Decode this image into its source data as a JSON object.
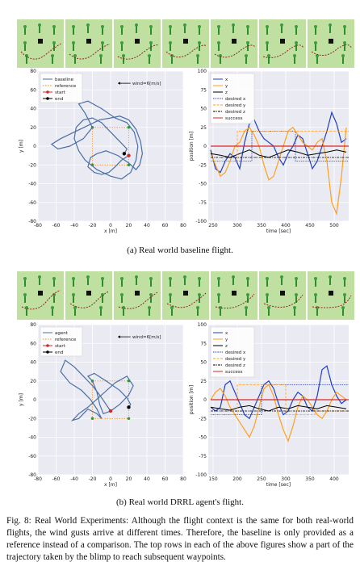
{
  "captions": {
    "a": "(a) Real world baseline flight.",
    "b": "(b) Real world DRRL agent's flight."
  },
  "figure_caption": "Fig. 8: Real World Experiments: Although the flight context is the same for both real-world flights, the wind gusts arrive at different times. Therefore, the baseline is only provided as a reference instead of a comparison. The top rows in each of the above figures show a part of the trajectory taken by the blimp to reach subsequent waypoints.",
  "colors": {
    "x": "#1f3fbf",
    "y": "#ff9f1c",
    "z": "#000000",
    "success": "#d62728",
    "traj": "#4a6fa5",
    "reference": "#f28c28",
    "start": "#d62728",
    "end": "#000000",
    "tile": "#bfe0a0",
    "panel_bg": "#eaeaf2"
  },
  "chart_data": [
    {
      "type": "line",
      "id": "a-left",
      "xlabel": "x [m]",
      "ylabel": "y [m]",
      "xlim": [
        -80,
        80
      ],
      "ylim": [
        -80,
        80
      ],
      "xticks": [
        -80,
        -60,
        -40,
        -20,
        0,
        20,
        40,
        60,
        80
      ],
      "yticks": [
        -80,
        -60,
        -40,
        -20,
        0,
        20,
        40,
        60,
        80
      ],
      "annotation": "wind=6[m/s]",
      "legend": [
        "baseline",
        "reference",
        "start",
        "end"
      ],
      "reference": {
        "x": [
          -20,
          20,
          20,
          -20,
          -20
        ],
        "y": [
          -20,
          -20,
          20,
          20,
          -20
        ]
      },
      "start": [
        20,
        -10
      ],
      "end": [
        15,
        -8
      ],
      "series": [
        {
          "name": "baseline",
          "x": [
            20,
            12,
            5,
            -2,
            -10,
            -18,
            -25,
            -22,
            -15,
            -5,
            8,
            20,
            28,
            32,
            35,
            33,
            28,
            20,
            10,
            0,
            -12,
            -25,
            -40,
            -55,
            -65,
            -58,
            -45,
            -30,
            -20,
            -28,
            -35,
            -25,
            -10,
            5,
            18,
            26,
            30,
            28,
            22,
            12,
            0,
            -15,
            -28,
            -35,
            -40,
            -38,
            -30,
            -20,
            -10,
            0,
            10,
            18,
            15
          ],
          "y": [
            -10,
            -15,
            -22,
            -28,
            -30,
            -28,
            -22,
            -12,
            -8,
            -5,
            -10,
            -18,
            -25,
            -20,
            -8,
            5,
            18,
            28,
            32,
            30,
            28,
            22,
            15,
            8,
            2,
            -3,
            0,
            8,
            20,
            35,
            45,
            48,
            40,
            30,
            25,
            15,
            0,
            -15,
            -28,
            -35,
            -32,
            -25,
            -15,
            -5,
            8,
            20,
            28,
            30,
            25,
            15,
            5,
            -3,
            -8
          ]
        }
      ]
    },
    {
      "type": "line",
      "id": "a-right",
      "xlabel": "time [sec]",
      "ylabel": "position [m]",
      "xlim": [
        240,
        530
      ],
      "ylim": [
        -100,
        100
      ],
      "xticks": [
        250,
        300,
        350,
        400,
        450,
        500
      ],
      "yticks": [
        -100,
        -75,
        -50,
        -25,
        0,
        25,
        50,
        75,
        100
      ],
      "legend": [
        "x",
        "y",
        "z",
        "desired x",
        "desired y",
        "desired z",
        "success"
      ],
      "series": [
        {
          "name": "x",
          "x": [
            245,
            255,
            265,
            275,
            285,
            295,
            305,
            315,
            325,
            335,
            345,
            355,
            365,
            375,
            385,
            395,
            405,
            415,
            425,
            435,
            445,
            455,
            465,
            475,
            485,
            495,
            505,
            515,
            525
          ],
          "y": [
            -5,
            -30,
            -35,
            -20,
            -10,
            -15,
            -30,
            5,
            30,
            35,
            20,
            10,
            5,
            0,
            -15,
            -25,
            -10,
            0,
            15,
            10,
            -10,
            -30,
            -20,
            0,
            20,
            45,
            30,
            5,
            10
          ]
        },
        {
          "name": "y",
          "x": [
            245,
            255,
            265,
            275,
            285,
            295,
            305,
            315,
            325,
            335,
            345,
            355,
            365,
            375,
            385,
            395,
            405,
            415,
            425,
            435,
            445,
            455,
            465,
            475,
            485,
            495,
            505,
            515,
            525
          ],
          "y": [
            -10,
            -25,
            -40,
            -35,
            -20,
            0,
            5,
            20,
            25,
            15,
            0,
            -25,
            -45,
            -40,
            -20,
            0,
            20,
            25,
            15,
            5,
            0,
            -5,
            5,
            10,
            -20,
            -75,
            -90,
            -40,
            25
          ]
        },
        {
          "name": "z",
          "x": [
            245,
            265,
            285,
            305,
            325,
            345,
            365,
            385,
            405,
            425,
            445,
            465,
            485,
            505,
            525
          ],
          "y": [
            -10,
            -12,
            -15,
            -10,
            -5,
            -12,
            -15,
            -10,
            -5,
            -8,
            -12,
            -10,
            -8,
            -5,
            -8
          ]
        },
        {
          "name": "desired x",
          "x": [
            245,
            330,
            330,
            420,
            420,
            530
          ],
          "y": [
            -20,
            -20,
            20,
            20,
            -20,
            -20
          ]
        },
        {
          "name": "desired y",
          "x": [
            245,
            300,
            300,
            380,
            380,
            480,
            480,
            530
          ],
          "y": [
            -20,
            -20,
            20,
            20,
            20,
            20,
            20,
            20
          ]
        },
        {
          "name": "desired z",
          "x": [
            245,
            530
          ],
          "y": [
            -15,
            -15
          ]
        },
        {
          "name": "success",
          "x": [
            245,
            530
          ],
          "y": [
            0,
            0
          ]
        }
      ]
    },
    {
      "type": "line",
      "id": "b-left",
      "xlabel": "x [m]",
      "ylabel": "y [m]",
      "xlim": [
        -80,
        80
      ],
      "ylim": [
        -80,
        80
      ],
      "xticks": [
        -80,
        -60,
        -40,
        -20,
        0,
        20,
        40,
        60,
        80
      ],
      "yticks": [
        -80,
        -60,
        -40,
        -20,
        0,
        20,
        40,
        60,
        80
      ],
      "annotation": "wind=6[m/s]",
      "legend": [
        "agent",
        "reference",
        "start",
        "end"
      ],
      "reference": {
        "x": [
          -20,
          20,
          20,
          -20,
          -20
        ],
        "y": [
          -20,
          -20,
          20,
          20,
          -20
        ]
      },
      "start": [
        0,
        -12
      ],
      "end": [
        20,
        -8
      ],
      "series": [
        {
          "name": "agent",
          "x": [
            0,
            -5,
            -12,
            -20,
            -30,
            -40,
            -50,
            -55,
            -45,
            -32,
            -22,
            -15,
            -10,
            -15,
            -25,
            -35,
            -42,
            -35,
            -25,
            -10,
            5,
            18,
            25,
            20,
            10,
            0,
            -8,
            -12,
            -15,
            -20,
            -25,
            -18,
            -5,
            10,
            18,
            22,
            20
          ],
          "y": [
            -12,
            -5,
            5,
            15,
            25,
            35,
            42,
            30,
            18,
            10,
            0,
            -10,
            -20,
            -15,
            -10,
            -20,
            -22,
            -15,
            -8,
            5,
            18,
            25,
            15,
            5,
            -5,
            -12,
            -15,
            -5,
            8,
            20,
            25,
            28,
            20,
            10,
            2,
            -5,
            -8
          ]
        }
      ]
    },
    {
      "type": "line",
      "id": "b-right",
      "xlabel": "time [sec]",
      "ylabel": "position [m]",
      "xlim": [
        140,
        430
      ],
      "ylim": [
        -100,
        100
      ],
      "xticks": [
        150,
        200,
        250,
        300,
        350,
        400
      ],
      "yticks": [
        -100,
        -75,
        -50,
        -25,
        0,
        25,
        50,
        75,
        100
      ],
      "legend": [
        "x",
        "y",
        "z",
        "desired x",
        "desired y",
        "desired z",
        "success"
      ],
      "series": [
        {
          "name": "x",
          "x": [
            145,
            155,
            165,
            175,
            185,
            195,
            205,
            215,
            225,
            235,
            245,
            255,
            265,
            275,
            285,
            295,
            305,
            315,
            325,
            335,
            345,
            355,
            365,
            375,
            385,
            395,
            405,
            415,
            425
          ],
          "y": [
            -10,
            -15,
            -10,
            20,
            25,
            10,
            -5,
            -20,
            -25,
            -10,
            5,
            20,
            25,
            15,
            -5,
            -20,
            -15,
            0,
            10,
            5,
            -10,
            -15,
            5,
            40,
            45,
            20,
            5,
            -5,
            0
          ]
        },
        {
          "name": "y",
          "x": [
            145,
            155,
            165,
            175,
            185,
            195,
            205,
            215,
            225,
            235,
            245,
            255,
            265,
            275,
            285,
            295,
            305,
            315,
            325,
            335,
            345,
            355,
            365,
            375,
            385,
            395,
            405,
            415,
            425
          ],
          "y": [
            0,
            10,
            15,
            5,
            -10,
            -20,
            -30,
            -40,
            -50,
            -35,
            -10,
            15,
            20,
            5,
            -20,
            -40,
            -55,
            -35,
            -10,
            5,
            0,
            -10,
            -20,
            -25,
            -15,
            0,
            10,
            5,
            0
          ]
        },
        {
          "name": "z",
          "x": [
            145,
            165,
            185,
            205,
            225,
            245,
            265,
            285,
            305,
            325,
            345,
            365,
            385,
            405,
            425
          ],
          "y": [
            -10,
            -12,
            -14,
            -10,
            -8,
            -12,
            -15,
            -10,
            -12,
            -8,
            -10,
            -12,
            -8,
            -10,
            -12
          ]
        },
        {
          "name": "desired x",
          "x": [
            145,
            250,
            250,
            340,
            340,
            430
          ],
          "y": [
            -20,
            -20,
            20,
            20,
            20,
            20
          ]
        },
        {
          "name": "desired y",
          "x": [
            145,
            200,
            200,
            300,
            300,
            360,
            360,
            430
          ],
          "y": [
            -20,
            -20,
            20,
            20,
            -20,
            -20,
            -15,
            -15
          ]
        },
        {
          "name": "desired z",
          "x": [
            145,
            430
          ],
          "y": [
            -15,
            -15
          ]
        },
        {
          "name": "success",
          "x": [
            145,
            430
          ],
          "y": [
            0,
            0
          ]
        }
      ]
    }
  ]
}
